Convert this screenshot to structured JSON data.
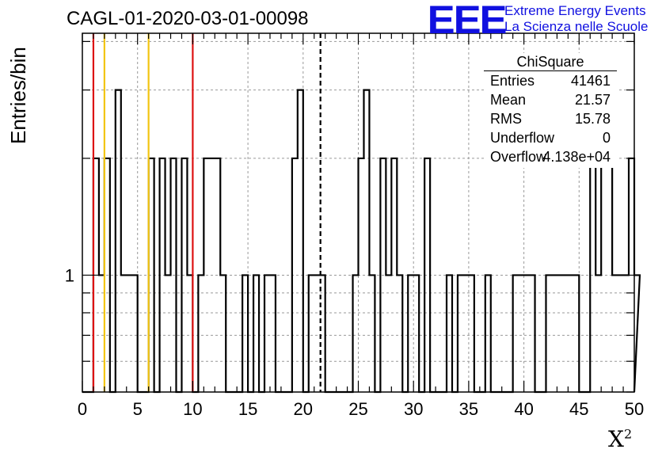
{
  "header": {
    "title": "CAGL-01-2020-03-01-00098",
    "logo_text": "EEE",
    "tagline1": "Extreme Energy Events",
    "tagline2": "La Scienza nelle Scuole"
  },
  "stats": {
    "name": "ChiSquare",
    "rows": [
      {
        "key": "Entries",
        "value": "41461"
      },
      {
        "key": "Mean",
        "value": "21.57"
      },
      {
        "key": "RMS",
        "value": "15.78"
      },
      {
        "key": "Underflow",
        "value": "0"
      },
      {
        "key": "Overflow",
        "value": "4.138e+04"
      }
    ]
  },
  "colors": {
    "red_line": "#dd1111",
    "yellow_line": "#f2c511",
    "histogram": "#000000",
    "grid": "#999999"
  },
  "chart_data": {
    "type": "bar",
    "style": "step-histogram",
    "xlabel": "X",
    "xlabel_superscript": "2",
    "ylabel": "Entries/bin",
    "xlim": [
      0,
      50
    ],
    "y_scale": "log",
    "ylim": [
      0.5,
      4.2
    ],
    "grid": true,
    "bin_width": 0.5,
    "x_ticks": [
      0,
      5,
      10,
      15,
      20,
      25,
      30,
      35,
      40,
      45,
      50
    ],
    "x_tick_labels": [
      "0",
      "5",
      "10",
      "15",
      "20",
      "25",
      "30",
      "35",
      "40",
      "45",
      "50"
    ],
    "y_tick_labels": [
      {
        "value": 1,
        "label": "1"
      }
    ],
    "bin_counts": [
      0,
      0,
      2,
      1,
      2,
      0,
      3,
      1,
      1,
      1,
      0,
      0,
      2,
      0,
      2,
      1,
      2,
      0,
      2,
      1,
      0,
      1,
      2,
      2,
      2,
      1,
      0,
      0,
      0,
      1,
      0,
      1,
      0,
      1,
      1,
      0,
      0,
      0,
      2,
      3,
      0,
      1,
      1,
      1,
      0,
      0,
      0,
      0,
      0,
      1,
      2,
      3,
      1,
      0,
      2,
      1,
      2,
      1,
      0,
      1,
      1,
      0,
      2,
      0,
      0,
      0,
      1,
      0,
      1,
      1,
      1,
      0,
      0,
      1,
      0,
      0,
      0,
      0,
      1,
      1,
      1,
      1,
      0,
      0,
      1,
      1,
      1,
      1,
      1,
      1,
      0,
      0,
      2,
      1,
      2,
      2,
      1,
      1,
      1,
      2,
      1
    ],
    "vertical_lines": [
      {
        "x": 1,
        "color": "#dd1111",
        "style": "solid"
      },
      {
        "x": 2,
        "color": "#f2c511",
        "style": "solid"
      },
      {
        "x": 6,
        "color": "#f2c511",
        "style": "solid"
      },
      {
        "x": 10,
        "color": "#dd1111",
        "style": "solid"
      },
      {
        "x": 21.57,
        "color": "#000000",
        "style": "dashed"
      }
    ]
  }
}
